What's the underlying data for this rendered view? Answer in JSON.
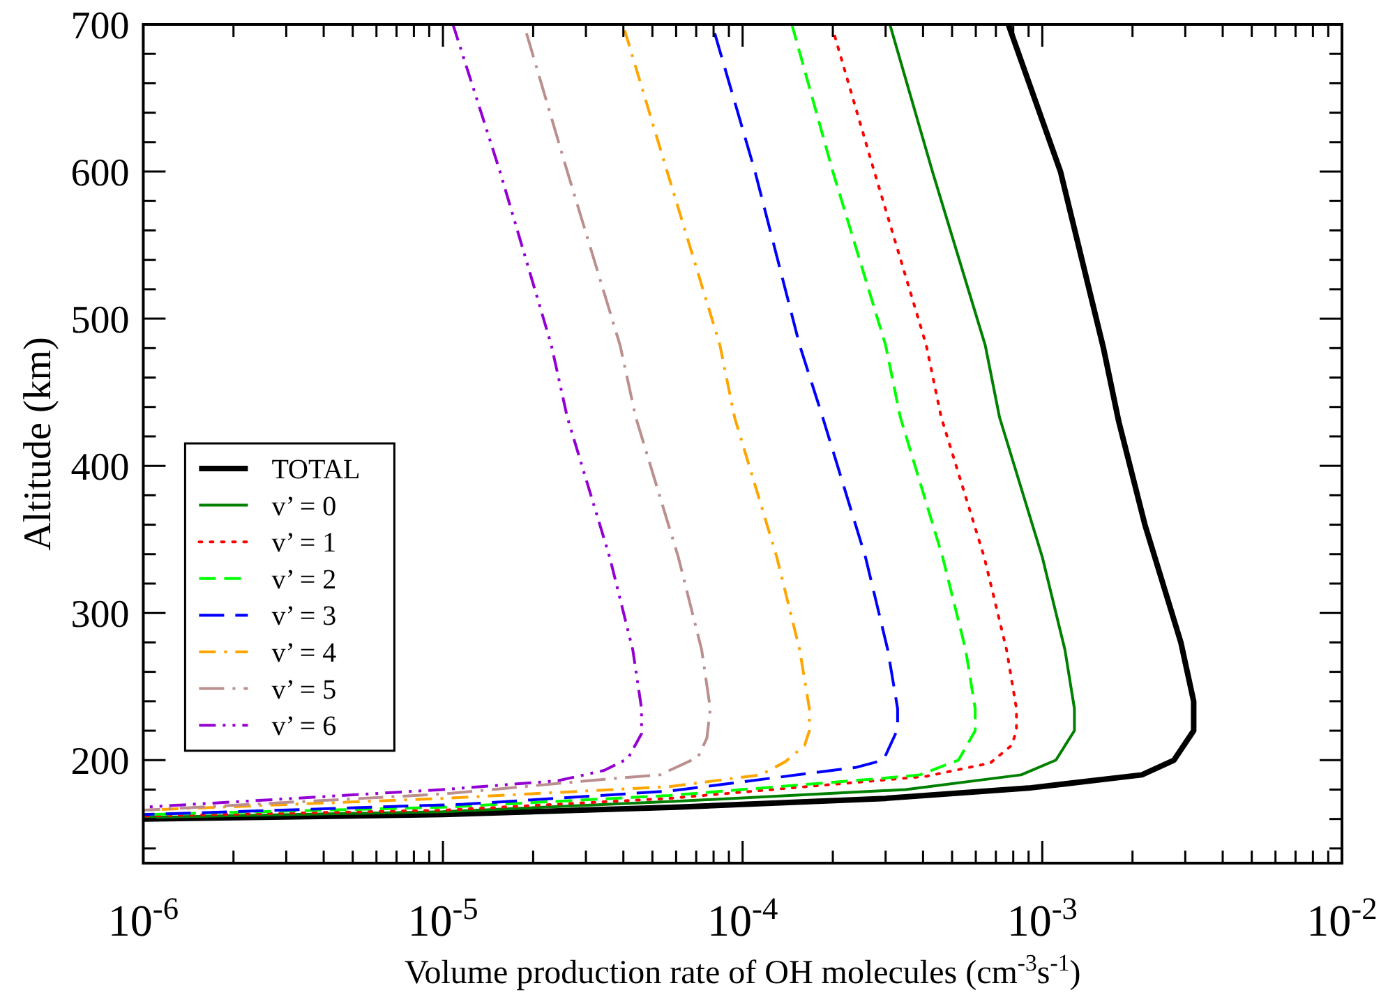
{
  "chart_data": {
    "type": "line",
    "xlabel": "Volume production rate of OH molecules (cm$^{-3}$s$^{-1}$)",
    "ylabel": "Altitude (km)",
    "log": "x",
    "xlim": [
      1e-06,
      0.01
    ],
    "ylim": [
      130,
      700
    ],
    "xticks": [
      {
        "value": 1e-06,
        "label": "10$^{-6}$"
      },
      {
        "value": 2e-06,
        "label": null
      },
      {
        "value": 3e-06,
        "label": null
      },
      {
        "value": 4e-06,
        "label": null
      },
      {
        "value": 5e-06,
        "label": null
      },
      {
        "value": 6e-06,
        "label": null
      },
      {
        "value": 7e-06,
        "label": null
      },
      {
        "value": 8e-06,
        "label": null
      },
      {
        "value": 9e-06,
        "label": null
      },
      {
        "value": 1e-05,
        "label": "10$^{-5}$"
      },
      {
        "value": 2e-05,
        "label": null
      },
      {
        "value": 3e-05,
        "label": null
      },
      {
        "value": 4e-05,
        "label": null
      },
      {
        "value": 5e-05,
        "label": null
      },
      {
        "value": 6e-05,
        "label": null
      },
      {
        "value": 7e-05,
        "label": null
      },
      {
        "value": 8e-05,
        "label": null
      },
      {
        "value": 9e-05,
        "label": null
      },
      {
        "value": 0.0001,
        "label": "10$^{-4}$"
      },
      {
        "value": 0.0002,
        "label": null
      },
      {
        "value": 0.0003,
        "label": null
      },
      {
        "value": 0.0004,
        "label": null
      },
      {
        "value": 0.0005,
        "label": null
      },
      {
        "value": 0.0006,
        "label": null
      },
      {
        "value": 0.0007,
        "label": null
      },
      {
        "value": 0.0008,
        "label": null
      },
      {
        "value": 0.0009,
        "label": null
      },
      {
        "value": 0.001,
        "label": "10$^{-3}$"
      },
      {
        "value": 0.002,
        "label": null
      },
      {
        "value": 0.003,
        "label": null
      },
      {
        "value": 0.004,
        "label": null
      },
      {
        "value": 0.005,
        "label": null
      },
      {
        "value": 0.006,
        "label": null
      },
      {
        "value": 0.007,
        "label": null
      },
      {
        "value": 0.008,
        "label": null
      },
      {
        "value": 0.009,
        "label": null
      },
      {
        "value": 0.01,
        "label": "10$^{-2}$"
      }
    ],
    "yticks": [
      {
        "value": 140,
        "label": null
      },
      {
        "value": 160,
        "label": null
      },
      {
        "value": 180,
        "label": null
      },
      200,
      {
        "value": 220,
        "label": null
      },
      {
        "value": 240,
        "label": null
      },
      {
        "value": 260,
        "label": null
      },
      {
        "value": 280,
        "label": null
      },
      300,
      {
        "value": 320,
        "label": null
      },
      {
        "value": 340,
        "label": null
      },
      {
        "value": 360,
        "label": null
      },
      {
        "value": 380,
        "label": null
      },
      400,
      {
        "value": 420,
        "label": null
      },
      {
        "value": 440,
        "label": null
      },
      {
        "value": 460,
        "label": null
      },
      {
        "value": 480,
        "label": null
      },
      500,
      {
        "value": 520,
        "label": null
      },
      {
        "value": 540,
        "label": null
      },
      {
        "value": 560,
        "label": null
      },
      {
        "value": 580,
        "label": null
      },
      600,
      {
        "value": 620,
        "label": null
      },
      {
        "value": 640,
        "label": null
      },
      {
        "value": 660,
        "label": null
      },
      {
        "value": 680,
        "label": null
      },
      700
    ],
    "grid": false,
    "legend": "center left",
    "marker": "none",
    "series": [
      {
        "name": "TOTAL",
        "color": "#000000",
        "line_style": "solid",
        "x": [
          1e-06,
          1e-05,
          6e-05,
          0.0003,
          0.0009,
          0.00215,
          0.00275,
          0.0032,
          0.0032,
          0.0029,
          0.0022,
          0.0018,
          0.0016,
          0.00115,
          0.00077
        ],
        "values": [
          160,
          163,
          168,
          174,
          181,
          190,
          200,
          220,
          240,
          280,
          360,
          430,
          480,
          600,
          700
        ]
      },
      {
        "name": "v’ = 0",
        "color": "#008000",
        "line_style": "solid",
        "x": [
          1e-06,
          1e-05,
          6e-05,
          0.00035,
          0.00085,
          0.00111,
          0.00128,
          0.00128,
          0.00119,
          0.001,
          0.00072,
          0.000645,
          0.00043,
          0.00031
        ],
        "values": [
          161,
          165,
          172,
          180,
          190,
          200,
          220,
          235,
          275,
          338,
          433,
          482,
          600,
          700
        ]
      },
      {
        "name": "v’ = 1",
        "color": "#ff0000",
        "line_style": "dotted",
        "x": [
          1e-06,
          1e-05,
          5.7e-05,
          0.00041,
          0.00067,
          0.00079,
          0.00082,
          0.00082,
          0.00076,
          0.00064,
          0.00046,
          0.00041,
          0.000275,
          0.000203
        ],
        "values": [
          162,
          166,
          174,
          189,
          198,
          210,
          220,
          235,
          275,
          338,
          433,
          482,
          600,
          692
        ]
      },
      {
        "name": "v’ = 2",
        "color": "#00ff00",
        "line_style": "dashed",
        "x": [
          1e-06,
          1e-05,
          5.7e-05,
          0.000306,
          0.00039,
          0.000525,
          0.00056,
          0.000597,
          0.000597,
          0.000555,
          0.000465,
          0.000336,
          0.0003,
          0.0002,
          0.000146
        ],
        "values": [
          163,
          168,
          176,
          188,
          190,
          200,
          210,
          220,
          235,
          275,
          338,
          433,
          482,
          600,
          700
        ]
      },
      {
        "name": "v’ = 3",
        "color": "#0000ff",
        "line_style": "longdash",
        "x": [
          1e-06,
          1.17e-05,
          5.7e-05,
          0.000238,
          0.000295,
          0.000329,
          0.000329,
          0.000305,
          0.000257,
          0.000185,
          0.000155,
          0.00011,
          8.07e-05
        ],
        "values": [
          163,
          170,
          179,
          195,
          200,
          221,
          235,
          275,
          338,
          433,
          482,
          600,
          694
        ]
      },
      {
        "name": "v’ = 4",
        "color": "#ffa500",
        "line_style": "dashdot",
        "x": [
          1e-06,
          1e-05,
          5.7e-05,
          0.000115,
          0.000139,
          0.000161,
          0.000167,
          0.000167,
          0.000155,
          0.00013,
          9.4e-05,
          8.4e-05,
          5.6e-05,
          4.04e-05
        ],
        "values": [
          166,
          174,
          182,
          190,
          199,
          210,
          220,
          235,
          275,
          338,
          433,
          482,
          600,
          696
        ]
      },
      {
        "name": "v’ = 5",
        "color": "#bc8f8f",
        "line_style": "longdashdot",
        "x": [
          1e-06,
          1e-05,
          3.46e-05,
          5.3e-05,
          7.1e-05,
          7.6e-05,
          7.8e-05,
          7.3e-05,
          6.1e-05,
          4.4e-05,
          3.9e-05,
          2.6e-05,
          1.9e-05
        ],
        "values": [
          166,
          177,
          187,
          190,
          202,
          215,
          235,
          275,
          338,
          433,
          482,
          600,
          694
        ]
      },
      {
        "name": "v’ = 6",
        "color": "#9400d3",
        "line_style": "dashdotdot",
        "x": [
          1e-06,
          1e-05,
          2.42e-05,
          3.45e-05,
          4.14e-05,
          4.6e-05,
          4.6e-05,
          4.3e-05,
          3.6e-05,
          2.6e-05,
          2.3e-05,
          1.55e-05,
          1.08e-05
        ],
        "values": [
          168,
          180,
          186,
          193,
          201,
          218,
          235,
          275,
          338,
          433,
          482,
          600,
          700
        ]
      }
    ]
  }
}
